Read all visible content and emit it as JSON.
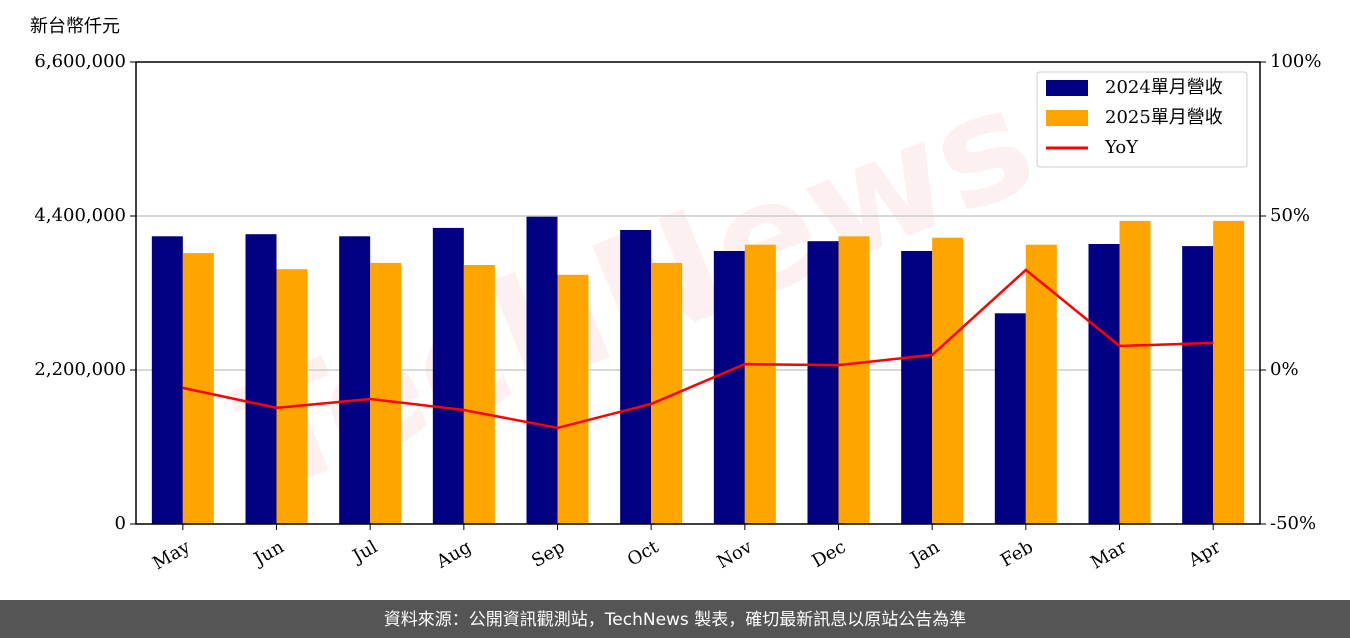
{
  "chart_data": {
    "type": "bar",
    "y_axis_title": "新台幣仟元",
    "watermark": "TechNews",
    "footer": "資料來源：公開資訊觀測站，TechNews 製表，確切最新訊息以原站公告為準",
    "categories": [
      "May",
      "Jun",
      "Jul",
      "Aug",
      "Sep",
      "Oct",
      "Nov",
      "Dec",
      "Jan",
      "Feb",
      "Mar",
      "Apr"
    ],
    "series": [
      {
        "name": "2024單月營收",
        "color": "#000080",
        "type": "bar",
        "values": [
          4110000,
          4140000,
          4110000,
          4230000,
          4390000,
          4200000,
          3900000,
          4040000,
          3900000,
          3010000,
          4000000,
          3970000
        ]
      },
      {
        "name": "2025單月營收",
        "color": "#ffa500",
        "type": "bar",
        "values": [
          3870000,
          3640000,
          3730000,
          3700000,
          3560000,
          3730000,
          3990000,
          4110000,
          4090000,
          3990000,
          4330000,
          4330000
        ]
      },
      {
        "name": "YoY",
        "color": "#ff0000",
        "type": "line",
        "axis": "y2",
        "values": [
          -5.8,
          -12.3,
          -9.4,
          -13,
          -18.8,
          -11,
          1.9,
          1.6,
          4.9,
          32.5,
          7.8,
          8.8
        ]
      }
    ],
    "ylim": [
      0,
      6600000
    ],
    "yticks": [
      {
        "value": 0,
        "label": "0"
      },
      {
        "value": 2200000,
        "label": "2,200,000"
      },
      {
        "value": 4400000,
        "label": "4,400,000"
      },
      {
        "value": 6600000,
        "label": "6,600,000"
      }
    ],
    "y2lim": [
      -50,
      100
    ],
    "y2ticks": [
      {
        "value": -50,
        "label": "-50%"
      },
      {
        "value": 0,
        "label": "0%"
      },
      {
        "value": 50,
        "label": "50%"
      },
      {
        "value": 100,
        "label": "100%"
      }
    ],
    "grid": true,
    "legend": "upper right"
  }
}
